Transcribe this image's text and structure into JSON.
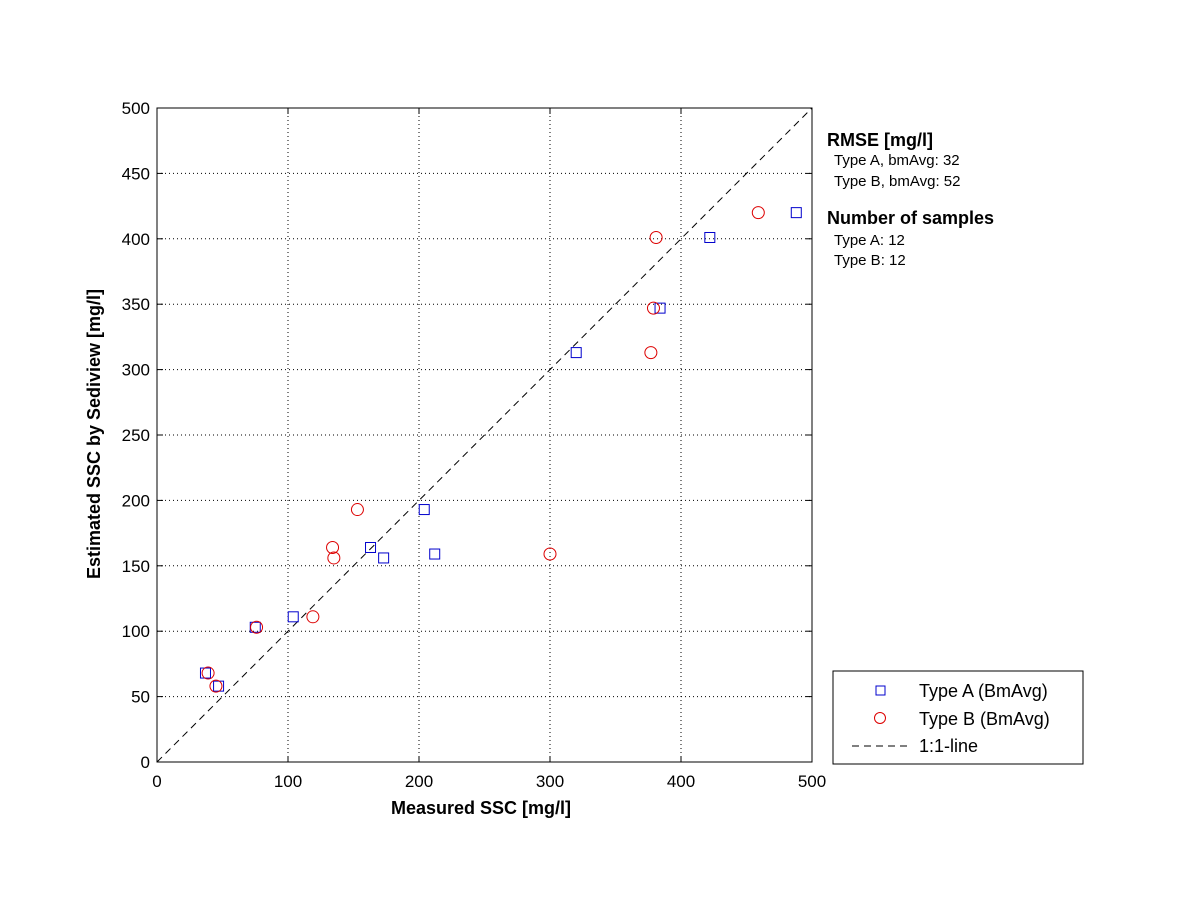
{
  "chart_data": {
    "type": "scatter",
    "xlabel": "Measured SSC [mg/l]",
    "ylabel": "Estimated SSC by Sediview [mg/l]",
    "xlim": [
      0,
      500
    ],
    "ylim": [
      0,
      500
    ],
    "xticks": [
      0,
      100,
      200,
      300,
      400,
      500
    ],
    "yticks": [
      0,
      50,
      100,
      150,
      200,
      250,
      300,
      350,
      400,
      450,
      500
    ],
    "grid": true,
    "legend_position": "bottom-right-outside",
    "series": [
      {
        "name": "Type A (BmAvg)",
        "marker": "square",
        "color": "#0000cc",
        "points": [
          [
            37,
            68
          ],
          [
            47,
            58
          ],
          [
            75,
            103
          ],
          [
            104,
            111
          ],
          [
            163,
            164
          ],
          [
            173,
            156
          ],
          [
            204,
            193
          ],
          [
            212,
            159
          ],
          [
            320,
            313
          ],
          [
            384,
            347
          ],
          [
            422,
            401
          ],
          [
            488,
            420
          ]
        ]
      },
      {
        "name": "Type B (BmAvg)",
        "marker": "circle",
        "color": "#dd0000",
        "points": [
          [
            39,
            68
          ],
          [
            45,
            58
          ],
          [
            76,
            103
          ],
          [
            119,
            111
          ],
          [
            134,
            164
          ],
          [
            135,
            156
          ],
          [
            153,
            193
          ],
          [
            300,
            159
          ],
          [
            377,
            313
          ],
          [
            379,
            347
          ],
          [
            381,
            401
          ],
          [
            459,
            420
          ]
        ]
      },
      {
        "name": "1:1-line",
        "style": "dashed",
        "color": "#000000",
        "points": [
          [
            0,
            0
          ],
          [
            500,
            500
          ]
        ]
      }
    ],
    "annotations": {
      "rmse_title": "RMSE [mg/l]",
      "rmse_a": "Type A, bmAvg: 32",
      "rmse_b": "Type B, bmAvg: 52",
      "n_title": "Number of samples",
      "n_a": "Type A: 12",
      "n_b": "Type B: 12"
    }
  }
}
